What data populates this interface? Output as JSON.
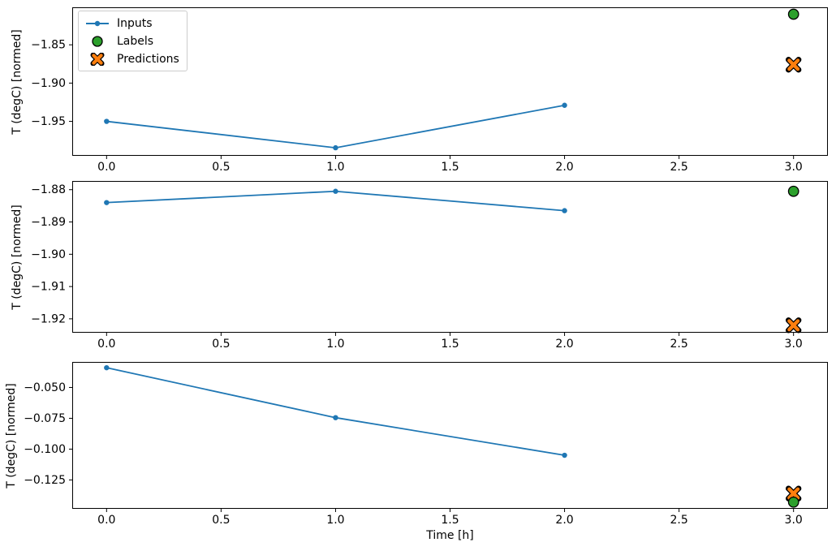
{
  "figure": {
    "xlabel": "Time [h]",
    "ylabel": "T (degC) [normed]",
    "legend": {
      "items": [
        {
          "label": "Inputs",
          "marker": "line-dot",
          "color": "#1f77b4"
        },
        {
          "label": "Labels",
          "marker": "circle",
          "color": "#2ca02c"
        },
        {
          "label": "Predictions",
          "marker": "X",
          "color": "#ff7f0e"
        }
      ]
    }
  },
  "chart_data": [
    {
      "type": "line",
      "title": "",
      "xlabel": "",
      "ylabel": "T (degC) [normed]",
      "xlim": [
        -0.15,
        3.15
      ],
      "ylim": [
        -1.995,
        -1.801
      ],
      "xtick_values": [
        0.0,
        0.5,
        1.0,
        1.5,
        2.0,
        2.5,
        3.0
      ],
      "xtick_labels": [
        "0.0",
        "0.5",
        "1.0",
        "1.5",
        "2.0",
        "2.5",
        "3.0"
      ],
      "ytick_values": [
        -1.85,
        -1.9,
        -1.95
      ],
      "ytick_labels": [
        "−1.85",
        "−1.90",
        "−1.95"
      ],
      "grid": false,
      "legend_position": "upper left",
      "series": [
        {
          "name": "Inputs",
          "type": "line",
          "marker": "dot",
          "color": "#1f77b4",
          "x": [
            0,
            1,
            2
          ],
          "y": [
            -1.95,
            -1.9845,
            -1.929
          ]
        },
        {
          "name": "Predictions",
          "type": "scatter",
          "marker": "X",
          "color": "#ff7f0e",
          "x": [
            3
          ],
          "y": [
            -1.876
          ]
        },
        {
          "name": "Labels",
          "type": "scatter",
          "marker": "circle",
          "color": "#2ca02c",
          "x": [
            3
          ],
          "y": [
            -1.81
          ]
        }
      ]
    },
    {
      "type": "line",
      "title": "",
      "xlabel": "",
      "ylabel": "T (degC) [normed]",
      "xlim": [
        -0.15,
        3.15
      ],
      "ylim": [
        -1.9243,
        -1.8773
      ],
      "xtick_values": [
        0.0,
        0.5,
        1.0,
        1.5,
        2.0,
        2.5,
        3.0
      ],
      "xtick_labels": [
        "0.0",
        "0.5",
        "1.0",
        "1.5",
        "2.0",
        "2.5",
        "3.0"
      ],
      "ytick_values": [
        -1.88,
        -1.89,
        -1.9,
        -1.91,
        -1.92
      ],
      "ytick_labels": [
        "−1.88",
        "−1.89",
        "−1.90",
        "−1.91",
        "−1.92"
      ],
      "grid": false,
      "legend_position": "none",
      "series": [
        {
          "name": "Inputs",
          "type": "line",
          "marker": "dot",
          "color": "#1f77b4",
          "x": [
            0,
            1,
            2
          ],
          "y": [
            -1.884,
            -1.8805,
            -1.8865
          ]
        },
        {
          "name": "Predictions",
          "type": "scatter",
          "marker": "X",
          "color": "#ff7f0e",
          "x": [
            3
          ],
          "y": [
            -1.922
          ]
        },
        {
          "name": "Labels",
          "type": "scatter",
          "marker": "circle",
          "color": "#2ca02c",
          "x": [
            3
          ],
          "y": [
            -1.8805
          ]
        }
      ]
    },
    {
      "type": "line",
      "title": "",
      "xlabel": "Time [h]",
      "ylabel": "T (degC) [normed]",
      "xlim": [
        -0.15,
        3.15
      ],
      "ylim": [
        -0.1484,
        -0.0293
      ],
      "xtick_values": [
        0.0,
        0.5,
        1.0,
        1.5,
        2.0,
        2.5,
        3.0
      ],
      "xtick_labels": [
        "0.0",
        "0.5",
        "1.0",
        "1.5",
        "2.0",
        "2.5",
        "3.0"
      ],
      "ytick_values": [
        -0.05,
        -0.075,
        -0.1,
        -0.125
      ],
      "ytick_labels": [
        "−0.050",
        "−0.075",
        "−0.100",
        "−0.125"
      ],
      "grid": false,
      "legend_position": "none",
      "series": [
        {
          "name": "Inputs",
          "type": "line",
          "marker": "dot",
          "color": "#1f77b4",
          "x": [
            0,
            1,
            2
          ],
          "y": [
            -0.034,
            -0.0745,
            -0.105
          ]
        },
        {
          "name": "Predictions",
          "type": "scatter",
          "marker": "X",
          "color": "#ff7f0e",
          "x": [
            3
          ],
          "y": [
            -0.136
          ]
        },
        {
          "name": "Labels",
          "type": "scatter",
          "marker": "circle",
          "color": "#2ca02c",
          "x": [
            3
          ],
          "y": [
            -0.143
          ]
        }
      ]
    }
  ]
}
